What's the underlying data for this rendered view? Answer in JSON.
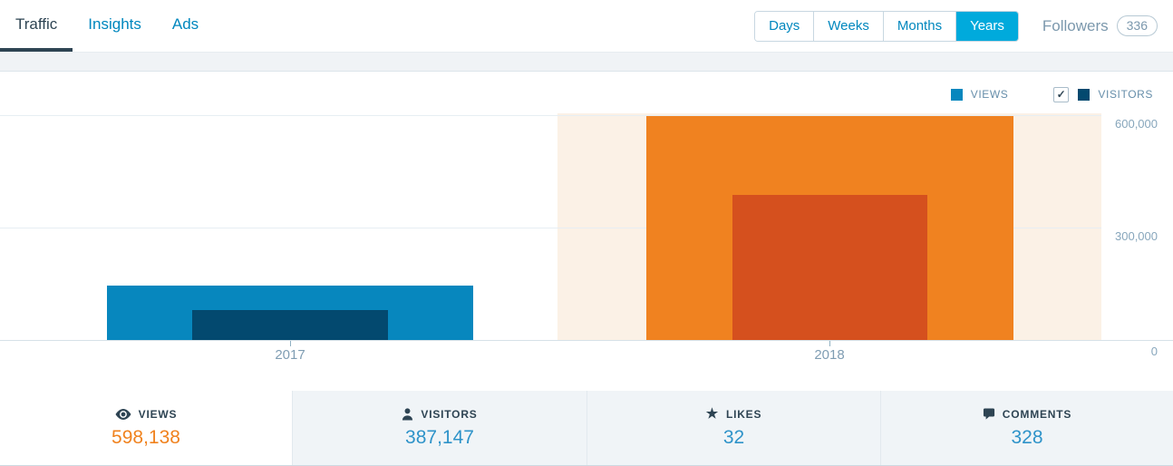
{
  "header": {
    "tabs": [
      {
        "label": "Traffic",
        "active": true
      },
      {
        "label": "Insights",
        "active": false
      },
      {
        "label": "Ads",
        "active": false
      }
    ],
    "period_buttons": [
      {
        "label": "Days",
        "active": false
      },
      {
        "label": "Weeks",
        "active": false
      },
      {
        "label": "Months",
        "active": false
      },
      {
        "label": "Years",
        "active": true
      }
    ],
    "followers_label": "Followers",
    "followers_count": "336"
  },
  "legend": {
    "views_label": "VIEWS",
    "visitors_label": "VISITORS",
    "visitors_checked": true,
    "check_glyph": "✓"
  },
  "chart_data": {
    "type": "bar",
    "categories": [
      "2017",
      "2018"
    ],
    "series": [
      {
        "name": "Views",
        "values": [
          145000,
          598138
        ]
      },
      {
        "name": "Visitors",
        "values": [
          80000,
          387147
        ]
      }
    ],
    "selected_category": "2018",
    "y_ticks": [
      "600,000",
      "300,000",
      "0"
    ],
    "ylim": [
      0,
      605000
    ],
    "grid": true,
    "legend_position": "top-right",
    "colors": {
      "views": "#0787be",
      "visitors": "#03496f",
      "views_selected": "#f08220",
      "visitors_selected": "#d5501e",
      "selected_column_bg": "#fbf1e6"
    }
  },
  "summary": [
    {
      "icon": "eye-icon",
      "label": "VIEWS",
      "value": "598,138",
      "active": true
    },
    {
      "icon": "user-icon",
      "label": "VISITORS",
      "value": "387,147",
      "active": false
    },
    {
      "icon": "star-icon",
      "label": "LIKES",
      "value": "32",
      "active": false
    },
    {
      "icon": "comment-bubble-icon",
      "label": "COMMENTS",
      "value": "328",
      "active": false
    }
  ],
  "icons": {
    "star_glyph": "★"
  },
  "colors": {
    "link_blue": "#0087be",
    "active_period_bg": "#00aadc",
    "views_value_text": "#f0821e",
    "metric_value_text": "#2e93c9",
    "dark_text": "#2e4453"
  }
}
